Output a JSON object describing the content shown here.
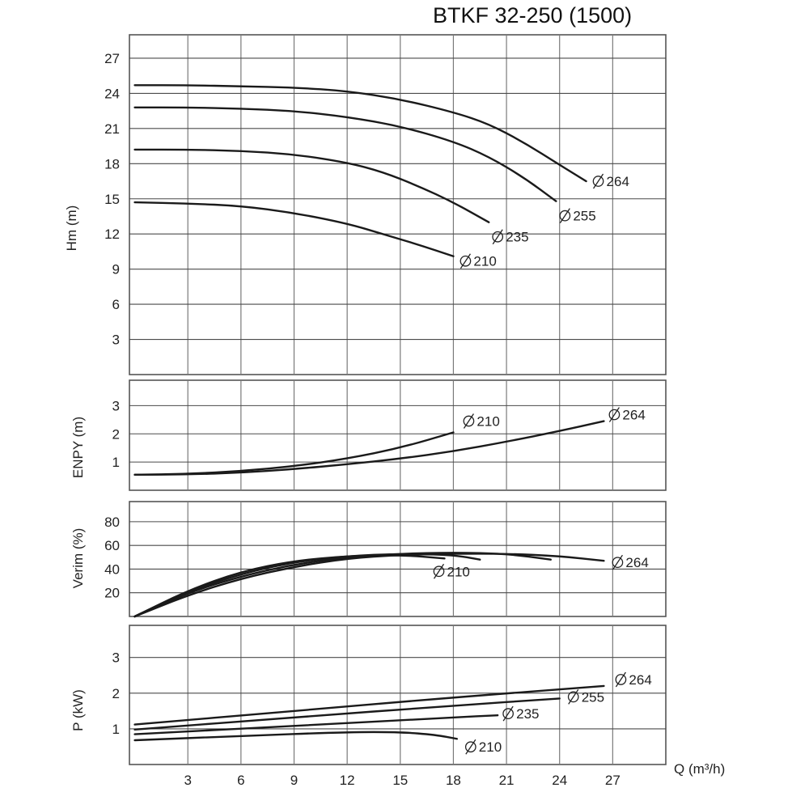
{
  "title": "BTKF 32-250 (1500)",
  "x_axis": {
    "label": "Q (m³/h)",
    "ticks": [
      3,
      6,
      9,
      12,
      15,
      18,
      21,
      24,
      27
    ],
    "range": [
      -0.3,
      30
    ]
  },
  "chart_data": [
    {
      "type": "line",
      "panel": "head",
      "ylabel": "Hm (m)",
      "ylim": [
        0,
        29
      ],
      "yticks": [
        3,
        6,
        9,
        12,
        15,
        18,
        21,
        24,
        27
      ],
      "grid": true,
      "series": [
        {
          "name": "Ø 264",
          "label": "264",
          "x": [
            0,
            3,
            6,
            9,
            12,
            15,
            18,
            20,
            22,
            24,
            25.5
          ],
          "y": [
            24.7,
            24.7,
            24.6,
            24.5,
            24.2,
            23.5,
            22.4,
            21.4,
            19.8,
            17.9,
            16.5
          ]
        },
        {
          "name": "Ø 255",
          "label": "255",
          "x": [
            0,
            3,
            6,
            9,
            12,
            15,
            18,
            20,
            22,
            23.8
          ],
          "y": [
            22.8,
            22.8,
            22.7,
            22.5,
            22.0,
            21.2,
            19.9,
            18.6,
            16.8,
            14.8
          ]
        },
        {
          "name": "Ø 235",
          "label": "235",
          "x": [
            0,
            3,
            6,
            9,
            12,
            14,
            16,
            18,
            20
          ],
          "y": [
            19.2,
            19.2,
            19.1,
            18.8,
            18.1,
            17.3,
            16.1,
            14.7,
            13.0
          ]
        },
        {
          "name": "Ø 210",
          "label": "210",
          "x": [
            0,
            3,
            6,
            9,
            12,
            14,
            16,
            18
          ],
          "y": [
            14.7,
            14.6,
            14.4,
            13.8,
            12.9,
            12.0,
            11.1,
            10.1
          ]
        }
      ]
    },
    {
      "type": "line",
      "panel": "npsh",
      "ylabel": "ENPY (m)",
      "ylim": [
        0,
        3.9
      ],
      "yticks": [
        1,
        2,
        3
      ],
      "grid": true,
      "series": [
        {
          "name": "Ø 210",
          "label": "210",
          "x": [
            0,
            3,
            6,
            9,
            12,
            15,
            18
          ],
          "y": [
            0.55,
            0.58,
            0.68,
            0.85,
            1.12,
            1.5,
            2.05
          ]
        },
        {
          "name": "Ø 264",
          "label": "264",
          "x": [
            0,
            3,
            6,
            9,
            12,
            15,
            18,
            21,
            24,
            26.5
          ],
          "y": [
            0.55,
            0.56,
            0.62,
            0.75,
            0.92,
            1.12,
            1.38,
            1.72,
            2.1,
            2.45
          ]
        }
      ]
    },
    {
      "type": "line",
      "panel": "efficiency",
      "ylabel": "Verim (%)",
      "ylim": [
        0,
        97
      ],
      "yticks": [
        20,
        40,
        60,
        80
      ],
      "grid": true,
      "series": [
        {
          "name": "Ø 210",
          "label": "210",
          "x": [
            0,
            3,
            6,
            9,
            12,
            15,
            17.5
          ],
          "y": [
            0,
            22,
            38,
            47,
            51,
            52,
            49
          ]
        },
        {
          "name": "Ø 235",
          "label": "",
          "x": [
            0,
            3,
            6,
            9,
            12,
            15,
            18,
            19.5
          ],
          "y": [
            0,
            21,
            36,
            46,
            51,
            53,
            52,
            48
          ]
        },
        {
          "name": "Ø 255",
          "label": "",
          "x": [
            0,
            3,
            6,
            9,
            12,
            15,
            18,
            21,
            23.5
          ],
          "y": [
            0,
            20,
            34,
            44,
            50,
            53,
            54,
            53,
            48
          ]
        },
        {
          "name": "Ø 264",
          "label": "264",
          "x": [
            0,
            3,
            6,
            9,
            12,
            15,
            18,
            21,
            24,
            26.5
          ],
          "y": [
            0,
            18,
            32,
            42,
            49,
            52,
            53,
            53,
            51,
            47
          ]
        }
      ]
    },
    {
      "type": "line",
      "panel": "power",
      "ylabel": "P (kW)",
      "ylim": [
        0,
        3.9
      ],
      "yticks": [
        1,
        2,
        3
      ],
      "grid": true,
      "series": [
        {
          "name": "Ø 264",
          "label": "264",
          "x": [
            0,
            9,
            18,
            26.5
          ],
          "y": [
            1.12,
            1.5,
            1.88,
            2.2
          ]
        },
        {
          "name": "Ø 255",
          "label": "255",
          "x": [
            0,
            9,
            18,
            24
          ],
          "y": [
            0.98,
            1.32,
            1.65,
            1.85
          ]
        },
        {
          "name": "Ø 235",
          "label": "235",
          "x": [
            0,
            9,
            18,
            20.5
          ],
          "y": [
            0.85,
            1.08,
            1.32,
            1.38
          ]
        },
        {
          "name": "Ø 210",
          "label": "210",
          "x": [
            0,
            6,
            12,
            15,
            17,
            18.2
          ],
          "y": [
            0.68,
            0.8,
            0.91,
            0.91,
            0.83,
            0.72
          ]
        }
      ]
    }
  ]
}
